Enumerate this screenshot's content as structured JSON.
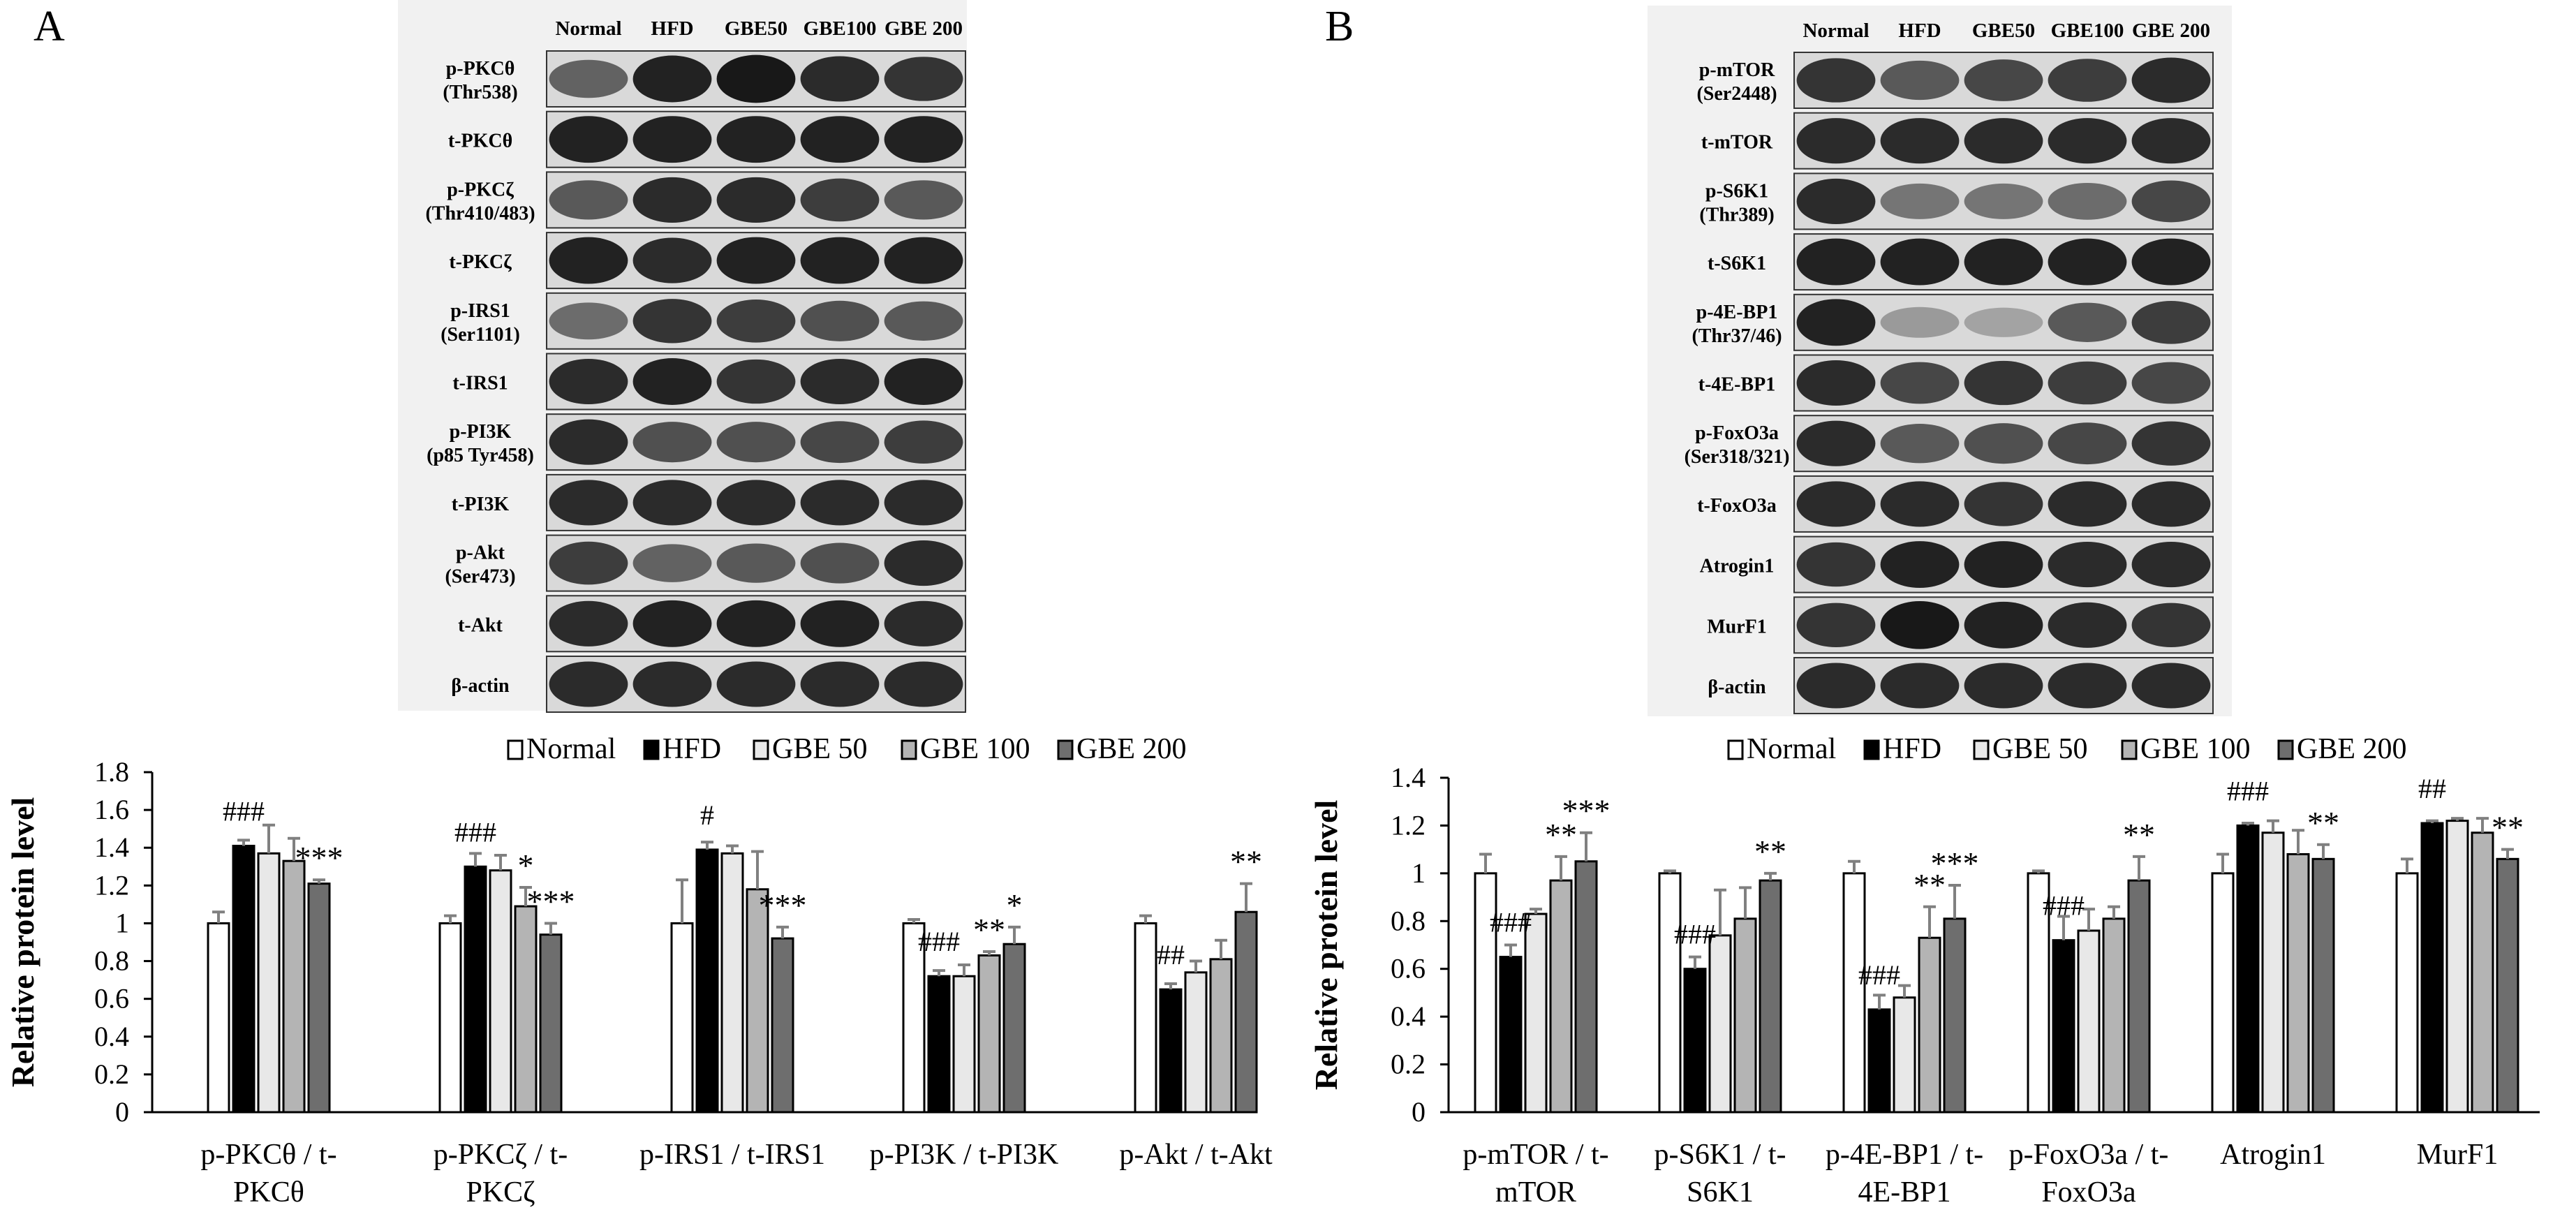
{
  "panels": [
    {
      "letter": "A",
      "lanes": [
        "Normal",
        "HFD",
        "GBE50",
        "GBE100",
        "GBE 200"
      ],
      "blots": [
        {
          "label": [
            "p-PKCθ",
            "(Thr538)"
          ],
          "intensity": [
            0.55,
            0.9,
            0.95,
            0.85,
            0.8
          ]
        },
        {
          "label": [
            "t-PKCθ"
          ],
          "intensity": [
            0.9,
            0.9,
            0.9,
            0.9,
            0.9
          ]
        },
        {
          "label": [
            "p-PKCζ",
            "(Thr410/483)"
          ],
          "intensity": [
            0.6,
            0.85,
            0.85,
            0.75,
            0.6
          ]
        },
        {
          "label": [
            "t-PKCζ"
          ],
          "intensity": [
            0.9,
            0.85,
            0.9,
            0.9,
            0.9
          ]
        },
        {
          "label": [
            "p-IRS1",
            "(Ser1101)"
          ],
          "intensity": [
            0.5,
            0.8,
            0.75,
            0.65,
            0.6
          ]
        },
        {
          "label": [
            "t-IRS1"
          ],
          "intensity": [
            0.85,
            0.9,
            0.8,
            0.85,
            0.9
          ]
        },
        {
          "label": [
            "p-PI3K",
            "(p85 Tyr458)"
          ],
          "intensity": [
            0.85,
            0.65,
            0.65,
            0.7,
            0.75
          ]
        },
        {
          "label": [
            "t-PI3K"
          ],
          "intensity": [
            0.85,
            0.85,
            0.85,
            0.85,
            0.85
          ]
        },
        {
          "label": [
            "p-Akt",
            "(Ser473)"
          ],
          "intensity": [
            0.75,
            0.55,
            0.6,
            0.65,
            0.85
          ]
        },
        {
          "label": [
            "t-Akt"
          ],
          "intensity": [
            0.85,
            0.9,
            0.9,
            0.9,
            0.85
          ]
        },
        {
          "label": [
            "β-actin"
          ],
          "intensity": [
            0.85,
            0.85,
            0.85,
            0.85,
            0.85
          ]
        }
      ]
    },
    {
      "letter": "B",
      "lanes": [
        "Normal",
        "HFD",
        "GBE50",
        "GBE100",
        "GBE 200"
      ],
      "blots": [
        {
          "label": [
            "p-mTOR",
            "(Ser2448)"
          ],
          "intensity": [
            0.8,
            0.6,
            0.7,
            0.75,
            0.85
          ]
        },
        {
          "label": [
            "t-mTOR"
          ],
          "intensity": [
            0.85,
            0.85,
            0.85,
            0.85,
            0.85
          ]
        },
        {
          "label": [
            "p-S6K1",
            "(Thr389)"
          ],
          "intensity": [
            0.85,
            0.45,
            0.45,
            0.5,
            0.7
          ]
        },
        {
          "label": [
            "t-S6K1"
          ],
          "intensity": [
            0.9,
            0.9,
            0.9,
            0.9,
            0.9
          ]
        },
        {
          "label": [
            "p-4E-BP1",
            "(Thr37/46)"
          ],
          "intensity": [
            0.9,
            0.25,
            0.2,
            0.6,
            0.75
          ]
        },
        {
          "label": [
            "t-4E-BP1"
          ],
          "intensity": [
            0.85,
            0.7,
            0.8,
            0.75,
            0.7
          ]
        },
        {
          "label": [
            "p-FoxO3a",
            "(Ser318/321)"
          ],
          "intensity": [
            0.85,
            0.6,
            0.65,
            0.7,
            0.8
          ]
        },
        {
          "label": [
            "t-FoxO3a"
          ],
          "intensity": [
            0.85,
            0.85,
            0.8,
            0.85,
            0.85
          ]
        },
        {
          "label": [
            "Atrogin1"
          ],
          "intensity": [
            0.8,
            0.9,
            0.9,
            0.85,
            0.85
          ]
        },
        {
          "label": [
            "MurF1"
          ],
          "intensity": [
            0.8,
            0.95,
            0.9,
            0.85,
            0.8
          ]
        },
        {
          "label": [
            "β-actin"
          ],
          "intensity": [
            0.85,
            0.85,
            0.85,
            0.85,
            0.85
          ]
        }
      ]
    }
  ],
  "chart_data": [
    {
      "type": "bar",
      "panel": "A",
      "ylabel": "Relative protein level",
      "ylim": [
        0,
        1.8
      ],
      "yticks": [
        "0",
        "0.2",
        "0.4",
        "0.6",
        "0.8",
        "1",
        "1.2",
        "1.4",
        "1.6",
        "1.8"
      ],
      "legend_position": "top",
      "categories": [
        [
          "p-PKCθ / t-",
          "PKCθ"
        ],
        [
          "p-PKCζ / t-",
          "PKCζ"
        ],
        [
          "p-IRS1 / t-IRS1"
        ],
        [
          "p-PI3K / t-PI3K"
        ],
        [
          "p-Akt / t-Akt"
        ]
      ],
      "series": [
        {
          "name": "Normal",
          "color": "#ffffff",
          "values": [
            1.0,
            1.0,
            1.0,
            1.0,
            1.0
          ],
          "errors": [
            0.06,
            0.04,
            0.23,
            0.02,
            0.04
          ]
        },
        {
          "name": "HFD",
          "color": "#000000",
          "values": [
            1.41,
            1.3,
            1.39,
            0.72,
            0.65
          ],
          "errors": [
            0.03,
            0.07,
            0.04,
            0.03,
            0.03
          ]
        },
        {
          "name": "GBE 50",
          "color": "#e8e8e8",
          "values": [
            1.37,
            1.28,
            1.37,
            0.72,
            0.74
          ],
          "errors": [
            0.15,
            0.08,
            0.04,
            0.06,
            0.06
          ]
        },
        {
          "name": "GBE 100",
          "color": "#b4b4b4",
          "values": [
            1.33,
            1.09,
            1.18,
            0.83,
            0.81
          ],
          "errors": [
            0.12,
            0.1,
            0.2,
            0.02,
            0.1
          ]
        },
        {
          "name": "GBE 200",
          "color": "#6e6e6e",
          "values": [
            1.21,
            0.94,
            0.92,
            0.89,
            1.06
          ],
          "errors": [
            0.02,
            0.06,
            0.06,
            0.09,
            0.15
          ]
        }
      ],
      "annotations": [
        {
          "cat": 0,
          "series": 1,
          "text": "###"
        },
        {
          "cat": 0,
          "series": 4,
          "text": "***"
        },
        {
          "cat": 1,
          "series": 1,
          "text": "###"
        },
        {
          "cat": 1,
          "series": 3,
          "text": "*"
        },
        {
          "cat": 1,
          "series": 4,
          "text": "***"
        },
        {
          "cat": 2,
          "series": 1,
          "text": "#"
        },
        {
          "cat": 2,
          "series": 4,
          "text": "***"
        },
        {
          "cat": 3,
          "series": 1,
          "text": "###"
        },
        {
          "cat": 3,
          "series": 3,
          "text": "**"
        },
        {
          "cat": 3,
          "series": 4,
          "text": "*"
        },
        {
          "cat": 4,
          "series": 1,
          "text": "##"
        },
        {
          "cat": 4,
          "series": 4,
          "text": "**"
        }
      ]
    },
    {
      "type": "bar",
      "panel": "B",
      "ylabel": "Relative protein level",
      "ylim": [
        0,
        1.4
      ],
      "yticks": [
        "0",
        "0.2",
        "0.4",
        "0.6",
        "0.8",
        "1",
        "1.2",
        "1.4"
      ],
      "legend_position": "top",
      "categories": [
        [
          "p-mTOR / t-",
          "mTOR"
        ],
        [
          "p-S6K1 / t-",
          "S6K1"
        ],
        [
          "p-4E-BP1 / t-",
          "4E-BP1"
        ],
        [
          "p-FoxO3a / t-",
          "FoxO3a"
        ],
        [
          "Atrogin1"
        ],
        [
          "MurF1"
        ]
      ],
      "series": [
        {
          "name": "Normal",
          "color": "#ffffff",
          "values": [
            1.0,
            1.0,
            1.0,
            1.0,
            1.0,
            1.0
          ],
          "errors": [
            0.08,
            0.01,
            0.05,
            0.01,
            0.08,
            0.06
          ]
        },
        {
          "name": "HFD",
          "color": "#000000",
          "values": [
            0.65,
            0.6,
            0.43,
            0.72,
            1.2,
            1.21
          ],
          "errors": [
            0.05,
            0.05,
            0.06,
            0.1,
            0.01,
            0.01
          ]
        },
        {
          "name": "GBE 50",
          "color": "#e8e8e8",
          "values": [
            0.83,
            0.74,
            0.48,
            0.76,
            1.17,
            1.22
          ],
          "errors": [
            0.02,
            0.19,
            0.05,
            0.09,
            0.05,
            0.01
          ]
        },
        {
          "name": "GBE 100",
          "color": "#b4b4b4",
          "values": [
            0.97,
            0.81,
            0.73,
            0.81,
            1.08,
            1.17
          ],
          "errors": [
            0.1,
            0.13,
            0.13,
            0.05,
            0.1,
            0.06
          ]
        },
        {
          "name": "GBE 200",
          "color": "#6e6e6e",
          "values": [
            1.05,
            0.97,
            0.81,
            0.97,
            1.06,
            1.06
          ],
          "errors": [
            0.12,
            0.03,
            0.14,
            0.1,
            0.06,
            0.04
          ]
        }
      ],
      "annotations": [
        {
          "cat": 0,
          "series": 1,
          "text": "###"
        },
        {
          "cat": 0,
          "series": 3,
          "text": "**"
        },
        {
          "cat": 0,
          "series": 4,
          "text": "***"
        },
        {
          "cat": 1,
          "series": 1,
          "text": "###"
        },
        {
          "cat": 1,
          "series": 4,
          "text": "**"
        },
        {
          "cat": 2,
          "series": 1,
          "text": "###"
        },
        {
          "cat": 2,
          "series": 3,
          "text": "**"
        },
        {
          "cat": 2,
          "series": 4,
          "text": "***"
        },
        {
          "cat": 3,
          "series": 1,
          "text": "###"
        },
        {
          "cat": 3,
          "series": 4,
          "text": "**"
        },
        {
          "cat": 4,
          "series": 1,
          "text": "###"
        },
        {
          "cat": 4,
          "series": 4,
          "text": "**"
        },
        {
          "cat": 5,
          "series": 1,
          "text": "##"
        },
        {
          "cat": 5,
          "series": 4,
          "text": "**"
        }
      ]
    }
  ]
}
